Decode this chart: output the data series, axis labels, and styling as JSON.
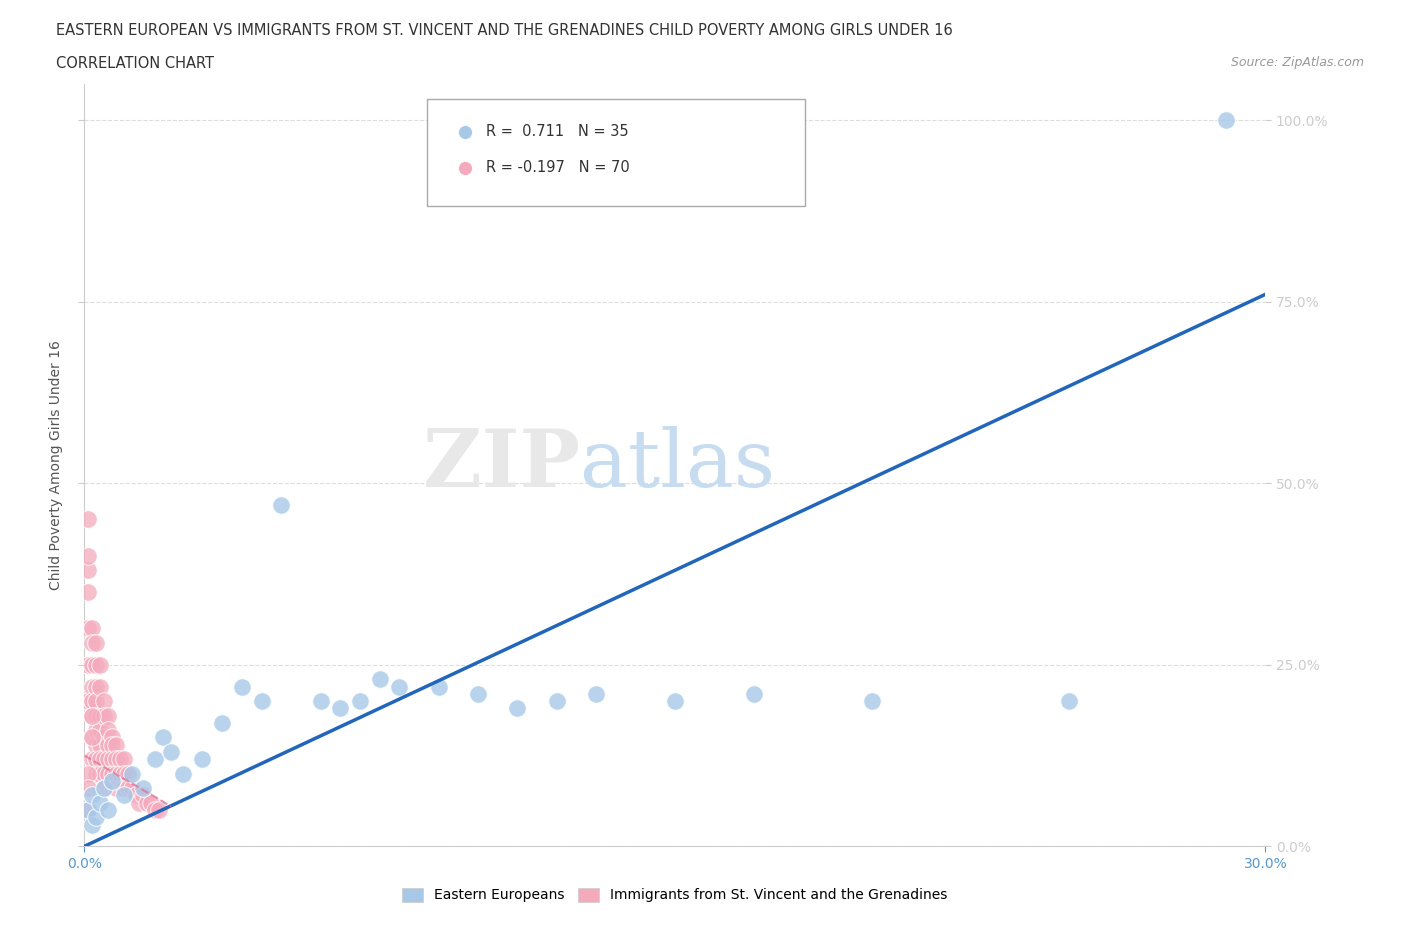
{
  "title_line1": "EASTERN EUROPEAN VS IMMIGRANTS FROM ST. VINCENT AND THE GRENADINES CHILD POVERTY AMONG GIRLS UNDER 16",
  "title_line2": "CORRELATION CHART",
  "source_text": "Source: ZipAtlas.com",
  "ylabel": "Child Poverty Among Girls Under 16",
  "xlim": [
    0.0,
    0.3
  ],
  "ylim": [
    0.0,
    1.05
  ],
  "xtick_positions": [
    0.0,
    0.3
  ],
  "xtick_labels": [
    "0.0%",
    "30.0%"
  ],
  "ytick_positions": [
    0.0,
    0.25,
    0.5,
    0.75,
    1.0
  ],
  "ytick_labels": [
    "0.0%",
    "25.0%",
    "50.0%",
    "75.0%",
    "100.0%"
  ],
  "blue_color": "#A8C8E8",
  "pink_color": "#F4AABC",
  "blue_line_color": "#2266BB",
  "pink_line_color": "#DD7799",
  "blue_r": 0.711,
  "blue_n": 35,
  "pink_r": -0.197,
  "pink_n": 70,
  "blue_points_x": [
    0.001,
    0.002,
    0.002,
    0.003,
    0.004,
    0.005,
    0.006,
    0.007,
    0.01,
    0.012,
    0.015,
    0.018,
    0.02,
    0.022,
    0.025,
    0.03,
    0.035,
    0.04,
    0.045,
    0.05,
    0.06,
    0.065,
    0.07,
    0.075,
    0.08,
    0.09,
    0.1,
    0.11,
    0.12,
    0.13,
    0.15,
    0.17,
    0.2,
    0.25,
    0.29
  ],
  "blue_points_y": [
    0.05,
    0.03,
    0.07,
    0.04,
    0.06,
    0.08,
    0.05,
    0.09,
    0.07,
    0.1,
    0.08,
    0.12,
    0.15,
    0.13,
    0.1,
    0.12,
    0.17,
    0.22,
    0.2,
    0.47,
    0.2,
    0.19,
    0.2,
    0.23,
    0.22,
    0.22,
    0.21,
    0.19,
    0.2,
    0.21,
    0.2,
    0.21,
    0.2,
    0.2,
    1.0
  ],
  "pink_points_x": [
    0.001,
    0.001,
    0.001,
    0.001,
    0.001,
    0.001,
    0.001,
    0.002,
    0.002,
    0.002,
    0.002,
    0.002,
    0.002,
    0.002,
    0.002,
    0.003,
    0.003,
    0.003,
    0.003,
    0.003,
    0.003,
    0.003,
    0.003,
    0.003,
    0.004,
    0.004,
    0.004,
    0.004,
    0.004,
    0.004,
    0.004,
    0.005,
    0.005,
    0.005,
    0.005,
    0.005,
    0.005,
    0.006,
    0.006,
    0.006,
    0.006,
    0.006,
    0.007,
    0.007,
    0.007,
    0.007,
    0.008,
    0.008,
    0.008,
    0.008,
    0.009,
    0.009,
    0.01,
    0.01,
    0.01,
    0.011,
    0.011,
    0.012,
    0.013,
    0.014,
    0.015,
    0.016,
    0.017,
    0.018,
    0.019,
    0.001,
    0.001,
    0.001,
    0.002,
    0.002
  ],
  "pink_points_y": [
    0.45,
    0.35,
    0.3,
    0.25,
    0.2,
    0.38,
    0.4,
    0.3,
    0.28,
    0.25,
    0.22,
    0.2,
    0.18,
    0.15,
    0.12,
    0.28,
    0.25,
    0.22,
    0.2,
    0.18,
    0.16,
    0.14,
    0.12,
    0.1,
    0.25,
    0.22,
    0.18,
    0.16,
    0.14,
    0.12,
    0.1,
    0.2,
    0.18,
    0.15,
    0.12,
    0.1,
    0.08,
    0.18,
    0.16,
    0.14,
    0.12,
    0.1,
    0.15,
    0.14,
    0.12,
    0.1,
    0.14,
    0.12,
    0.1,
    0.08,
    0.12,
    0.1,
    0.12,
    0.1,
    0.08,
    0.1,
    0.08,
    0.08,
    0.07,
    0.06,
    0.07,
    0.06,
    0.06,
    0.05,
    0.05,
    0.1,
    0.08,
    0.05,
    0.18,
    0.15
  ]
}
